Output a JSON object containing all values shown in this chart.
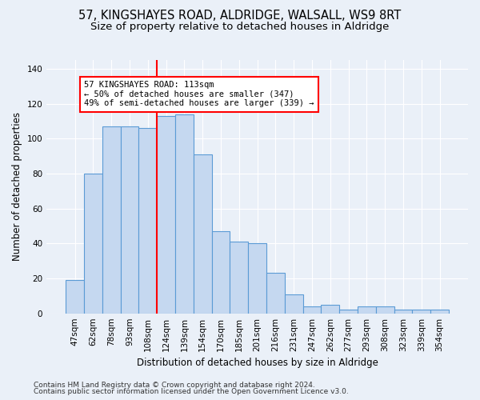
{
  "title_line1": "57, KINGSHAYES ROAD, ALDRIDGE, WALSALL, WS9 8RT",
  "title_line2": "Size of property relative to detached houses in Aldridge",
  "xlabel": "Distribution of detached houses by size in Aldridge",
  "ylabel": "Number of detached properties",
  "categories": [
    "47sqm",
    "62sqm",
    "78sqm",
    "93sqm",
    "108sqm",
    "124sqm",
    "139sqm",
    "154sqm",
    "170sqm",
    "185sqm",
    "201sqm",
    "216sqm",
    "231sqm",
    "247sqm",
    "262sqm",
    "277sqm",
    "293sqm",
    "308sqm",
    "323sqm",
    "339sqm",
    "354sqm"
  ],
  "values": [
    19,
    80,
    107,
    107,
    106,
    113,
    114,
    91,
    47,
    41,
    40,
    23,
    11,
    4,
    5,
    2,
    4,
    4,
    2,
    2,
    2
  ],
  "bar_color": "#c5d8f0",
  "bar_edge_color": "#5b9bd5",
  "vline_color": "red",
  "vline_x_index": 5,
  "annotation_title": "57 KINGSHAYES ROAD: 113sqm",
  "annotation_line1": "← 50% of detached houses are smaller (347)",
  "annotation_line2": "49% of semi-detached houses are larger (339) →",
  "annotation_box_color": "white",
  "annotation_box_edge_color": "red",
  "ylim": [
    0,
    145
  ],
  "yticks": [
    0,
    20,
    40,
    60,
    80,
    100,
    120,
    140
  ],
  "footnote1": "Contains HM Land Registry data © Crown copyright and database right 2024.",
  "footnote2": "Contains public sector information licensed under the Open Government Licence v3.0.",
  "background_color": "#eaf0f8",
  "grid_color": "white",
  "title_fontsize": 10.5,
  "subtitle_fontsize": 9.5,
  "axis_label_fontsize": 8.5,
  "tick_fontsize": 7.5,
  "footnote_fontsize": 6.5
}
